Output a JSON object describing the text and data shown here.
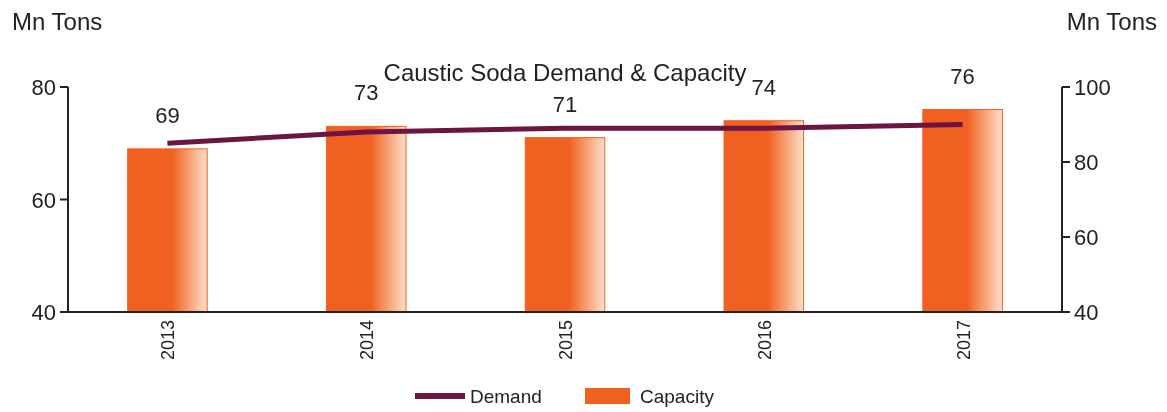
{
  "chart_data": {
    "type": "bar",
    "title": "Caustic Soda Demand & Capacity",
    "ylabel": "Mn Tons",
    "y2label": "Mn Tons",
    "categories": [
      "2013",
      "2014",
      "2015",
      "2016",
      "2017"
    ],
    "series": [
      {
        "name": "Demand",
        "type": "line",
        "axis": "y2",
        "color": "#6b1540",
        "values": [
          85,
          88,
          89,
          89,
          90
        ]
      },
      {
        "name": "Capacity",
        "color": "#f06020",
        "values": [
          69,
          73,
          71,
          74,
          76
        ],
        "value_labels": [
          "69",
          "73",
          "71",
          "74",
          "76"
        ]
      }
    ],
    "ylim": [
      40,
      80
    ],
    "yticks": [
      40,
      60,
      80
    ],
    "y2lim": [
      40,
      100
    ],
    "y2ticks": [
      40,
      60,
      80,
      100
    ],
    "legend": "bottom",
    "grid": false,
    "marker": "none",
    "line_style": "solid"
  }
}
